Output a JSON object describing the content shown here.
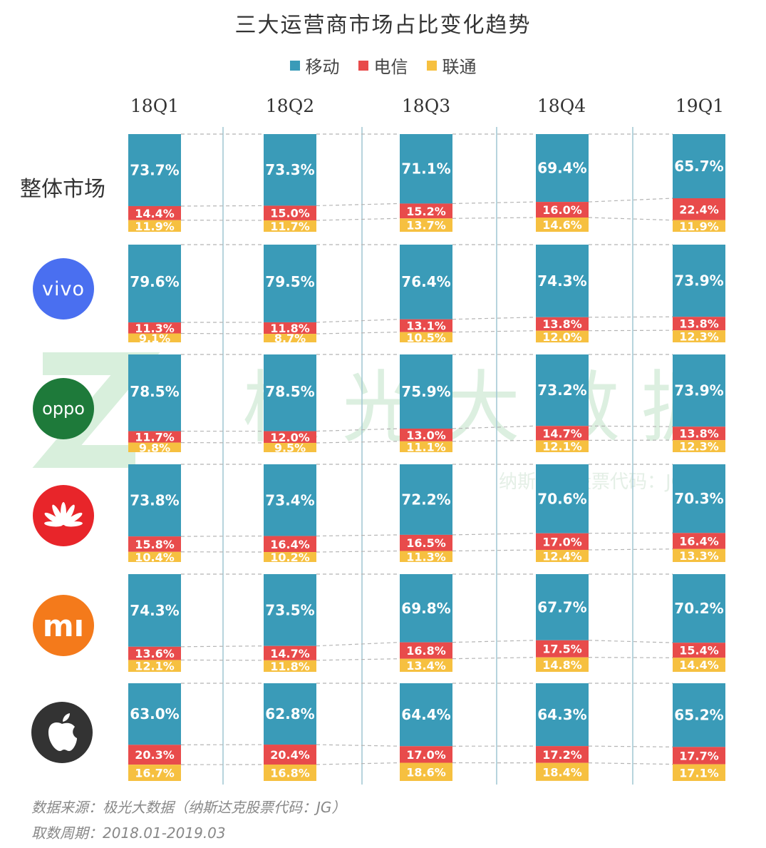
{
  "title": "三大运营商市场占比变化趋势",
  "legend": [
    "移动",
    "电信",
    "联通"
  ],
  "colors": {
    "移动": "#3a9bb8",
    "电信": "#e84b4b",
    "联通": "#f6c040"
  },
  "quarters": [
    "18Q1",
    "18Q2",
    "18Q3",
    "18Q4",
    "19Q1"
  ],
  "row_labels": {
    "overall": "整体市场",
    "vivo_logo_text": "vivo",
    "oppo_logo_text": "oppo",
    "mi_logo_text": "mı"
  },
  "watermark": {
    "name": "极光大数据",
    "sub": "纳斯达克股票代码：JG"
  },
  "footnotes": {
    "source": "数据来源：极光大数据（纳斯达克股票代码：JG）",
    "period": "取数周期：2018.01-2019.03"
  },
  "chart_data": {
    "type": "bar",
    "stacked": true,
    "categories": [
      "18Q1",
      "18Q2",
      "18Q3",
      "18Q4",
      "19Q1"
    ],
    "rows": [
      {
        "group": "整体市场",
        "移动": [
          73.7,
          73.3,
          71.1,
          69.4,
          65.7
        ],
        "电信": [
          14.4,
          15.0,
          15.2,
          16.0,
          22.4
        ],
        "联通": [
          11.9,
          11.7,
          13.7,
          14.6,
          11.9
        ]
      },
      {
        "group": "vivo",
        "移动": [
          79.6,
          79.5,
          76.4,
          74.3,
          73.9
        ],
        "电信": [
          11.3,
          11.8,
          13.1,
          13.8,
          13.8
        ],
        "联通": [
          9.1,
          8.7,
          10.5,
          12.0,
          12.3
        ]
      },
      {
        "group": "oppo",
        "移动": [
          78.5,
          78.5,
          75.9,
          73.2,
          73.9
        ],
        "电信": [
          11.7,
          12.0,
          13.0,
          14.7,
          13.8
        ],
        "联通": [
          9.8,
          9.5,
          11.1,
          12.1,
          12.3
        ]
      },
      {
        "group": "huawei",
        "移动": [
          73.8,
          73.4,
          72.2,
          70.6,
          70.3
        ],
        "电信": [
          15.8,
          16.4,
          16.5,
          17.0,
          16.4
        ],
        "联通": [
          10.4,
          10.2,
          11.3,
          12.4,
          13.3
        ]
      },
      {
        "group": "mi",
        "移动": [
          74.3,
          73.5,
          69.8,
          67.7,
          70.2
        ],
        "电信": [
          13.6,
          14.7,
          16.8,
          17.5,
          15.4
        ],
        "联通": [
          12.1,
          11.8,
          13.4,
          14.8,
          14.4
        ]
      },
      {
        "group": "apple",
        "移动": [
          63.0,
          62.8,
          64.4,
          64.3,
          65.2
        ],
        "电信": [
          20.3,
          20.4,
          17.0,
          17.2,
          17.7
        ],
        "联通": [
          16.7,
          16.8,
          18.6,
          18.4,
          17.1
        ]
      }
    ]
  }
}
